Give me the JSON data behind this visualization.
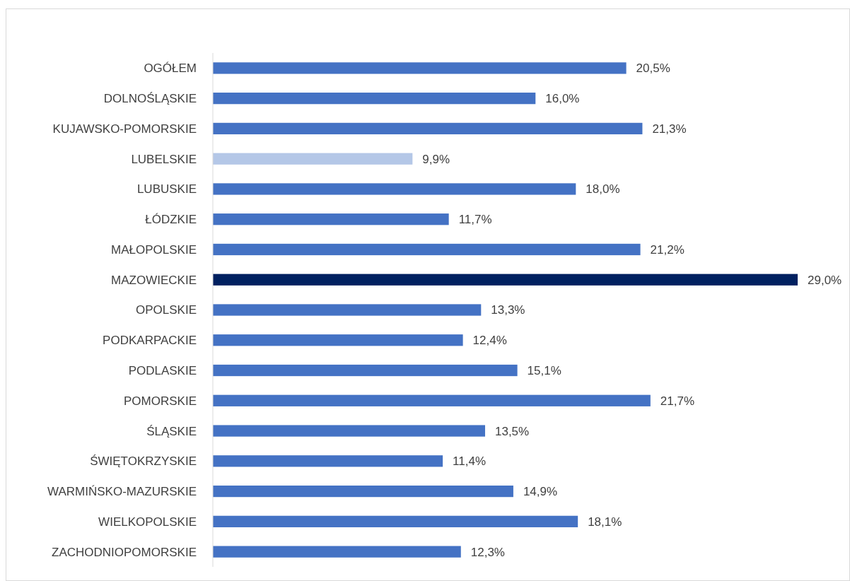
{
  "chart_data": {
    "type": "bar",
    "orientation": "horizontal",
    "categories": [
      "OGÓŁEM",
      "DOLNOŚLĄSKIE",
      "KUJAWSKO-POMORSKIE",
      "LUBELSKIE",
      "LUBUSKIE",
      "ŁÓDZKIE",
      "MAŁOPOLSKIE",
      "MAZOWIECKIE",
      "OPOLSKIE",
      "PODKARPACKIE",
      "PODLASKIE",
      "POMORSKIE",
      "ŚLĄSKIE",
      "ŚWIĘTOKRZYSKIE",
      "WARMIŃSKO-MAZURSKIE",
      "WIELKOPOLSKIE",
      "ZACHODNIOPOMORSKIE"
    ],
    "values": [
      20.5,
      16.0,
      21.3,
      9.9,
      18.0,
      11.7,
      21.2,
      29.0,
      13.3,
      12.4,
      15.1,
      21.7,
      13.5,
      11.4,
      14.9,
      18.1,
      12.3
    ],
    "colors": [
      "#4472c4",
      "#4472c4",
      "#4472c4",
      "#b4c7e7",
      "#4472c4",
      "#4472c4",
      "#4472c4",
      "#002060",
      "#4472c4",
      "#4472c4",
      "#4472c4",
      "#4472c4",
      "#4472c4",
      "#4472c4",
      "#4472c4",
      "#4472c4",
      "#4472c4"
    ],
    "value_labels": [
      "20,5%",
      "16,0%",
      "21,3%",
      "9,9%",
      "18,0%",
      "11,7%",
      "21,2%",
      "29,0%",
      "13,3%",
      "12,4%",
      "15,1%",
      "21,7%",
      "13,5%",
      "11,4%",
      "14,9%",
      "18,1%",
      "12,3%"
    ]
  }
}
